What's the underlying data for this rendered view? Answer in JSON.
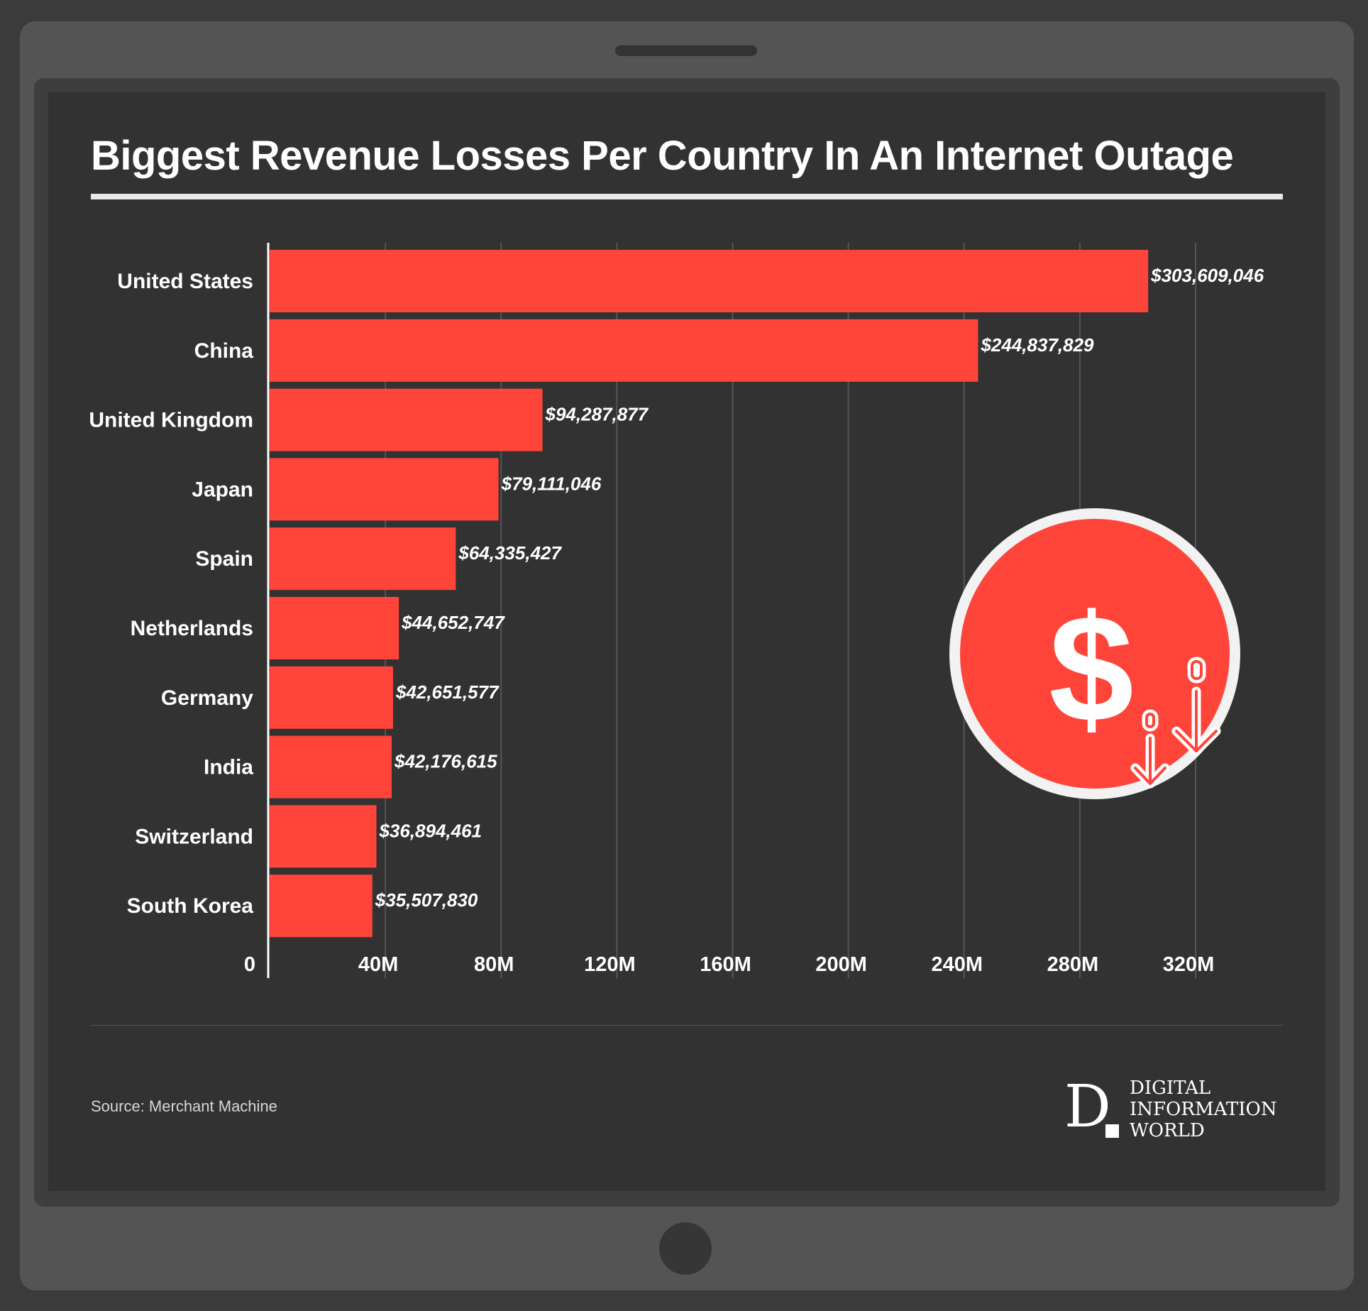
{
  "title": "Biggest Revenue Losses Per Country In An Internet Outage",
  "source": "Source: Merchant Machine",
  "logo": {
    "letter": "D",
    "lines": [
      "DIGITAL",
      "INFORMATION",
      "WORLD"
    ]
  },
  "colors": {
    "bar": "#ff453a",
    "background": "#323232",
    "text": "#ffffff",
    "grid": "#555555"
  },
  "badge": {
    "symbol": "$",
    "icon": "dollar-down-icon"
  },
  "chart_data": {
    "type": "bar",
    "orientation": "horizontal",
    "categories": [
      "United States",
      "China",
      "United Kingdom",
      "Japan",
      "Spain",
      "Netherlands",
      "Germany",
      "India",
      "Switzerland",
      "South Korea"
    ],
    "values": [
      303609046,
      244837829,
      94287877,
      79111046,
      64335427,
      44652747,
      42651577,
      42176615,
      36894461,
      35507830
    ],
    "value_labels": [
      "$303,609,046",
      "$244,837,829",
      "$94,287,877",
      "$79,111,046",
      "$64,335,427",
      "$44,652,747",
      "$42,651,577",
      "$42,176,615",
      "$36,894,461",
      "$35,507,830"
    ],
    "x_ticks": [
      0,
      40000000,
      80000000,
      120000000,
      160000000,
      200000000,
      240000000,
      280000000,
      320000000
    ],
    "x_tick_labels": [
      "0",
      "40M",
      "80M",
      "120M",
      "160M",
      "200M",
      "240M",
      "280M",
      "320M"
    ],
    "xlim": [
      0,
      320000000
    ],
    "grid": true,
    "legend": "none"
  }
}
